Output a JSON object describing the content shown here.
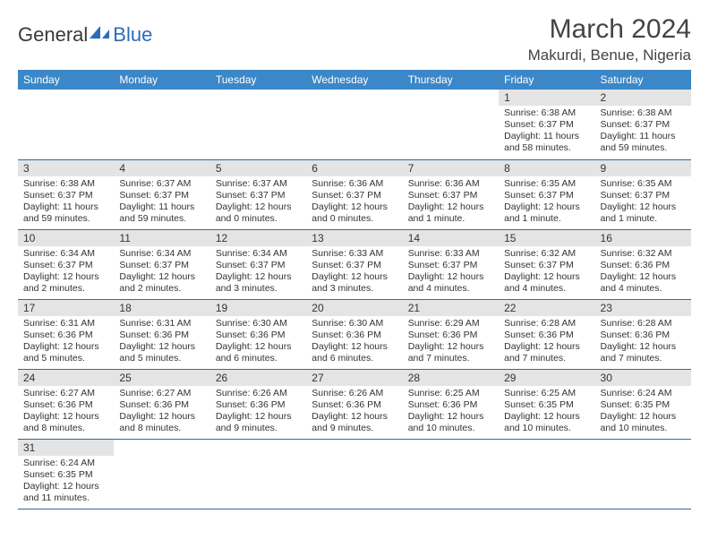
{
  "logo": {
    "part1": "General",
    "part2": "Blue"
  },
  "title": "March 2024",
  "location": "Makurdi, Benue, Nigeria",
  "colors": {
    "header_bg": "#3b87c8",
    "header_text": "#ffffff",
    "daynum_bg": "#e4e4e4",
    "cell_border": "#2f6aa8",
    "logo_accent": "#2a6db8"
  },
  "days_of_week": [
    "Sunday",
    "Monday",
    "Tuesday",
    "Wednesday",
    "Thursday",
    "Friday",
    "Saturday"
  ],
  "weeks": [
    [
      null,
      null,
      null,
      null,
      null,
      {
        "n": "1",
        "sunrise": "Sunrise: 6:38 AM",
        "sunset": "Sunset: 6:37 PM",
        "daylight": "Daylight: 11 hours and 58 minutes."
      },
      {
        "n": "2",
        "sunrise": "Sunrise: 6:38 AM",
        "sunset": "Sunset: 6:37 PM",
        "daylight": "Daylight: 11 hours and 59 minutes."
      }
    ],
    [
      {
        "n": "3",
        "sunrise": "Sunrise: 6:38 AM",
        "sunset": "Sunset: 6:37 PM",
        "daylight": "Daylight: 11 hours and 59 minutes."
      },
      {
        "n": "4",
        "sunrise": "Sunrise: 6:37 AM",
        "sunset": "Sunset: 6:37 PM",
        "daylight": "Daylight: 11 hours and 59 minutes."
      },
      {
        "n": "5",
        "sunrise": "Sunrise: 6:37 AM",
        "sunset": "Sunset: 6:37 PM",
        "daylight": "Daylight: 12 hours and 0 minutes."
      },
      {
        "n": "6",
        "sunrise": "Sunrise: 6:36 AM",
        "sunset": "Sunset: 6:37 PM",
        "daylight": "Daylight: 12 hours and 0 minutes."
      },
      {
        "n": "7",
        "sunrise": "Sunrise: 6:36 AM",
        "sunset": "Sunset: 6:37 PM",
        "daylight": "Daylight: 12 hours and 1 minute."
      },
      {
        "n": "8",
        "sunrise": "Sunrise: 6:35 AM",
        "sunset": "Sunset: 6:37 PM",
        "daylight": "Daylight: 12 hours and 1 minute."
      },
      {
        "n": "9",
        "sunrise": "Sunrise: 6:35 AM",
        "sunset": "Sunset: 6:37 PM",
        "daylight": "Daylight: 12 hours and 1 minute."
      }
    ],
    [
      {
        "n": "10",
        "sunrise": "Sunrise: 6:34 AM",
        "sunset": "Sunset: 6:37 PM",
        "daylight": "Daylight: 12 hours and 2 minutes."
      },
      {
        "n": "11",
        "sunrise": "Sunrise: 6:34 AM",
        "sunset": "Sunset: 6:37 PM",
        "daylight": "Daylight: 12 hours and 2 minutes."
      },
      {
        "n": "12",
        "sunrise": "Sunrise: 6:34 AM",
        "sunset": "Sunset: 6:37 PM",
        "daylight": "Daylight: 12 hours and 3 minutes."
      },
      {
        "n": "13",
        "sunrise": "Sunrise: 6:33 AM",
        "sunset": "Sunset: 6:37 PM",
        "daylight": "Daylight: 12 hours and 3 minutes."
      },
      {
        "n": "14",
        "sunrise": "Sunrise: 6:33 AM",
        "sunset": "Sunset: 6:37 PM",
        "daylight": "Daylight: 12 hours and 4 minutes."
      },
      {
        "n": "15",
        "sunrise": "Sunrise: 6:32 AM",
        "sunset": "Sunset: 6:37 PM",
        "daylight": "Daylight: 12 hours and 4 minutes."
      },
      {
        "n": "16",
        "sunrise": "Sunrise: 6:32 AM",
        "sunset": "Sunset: 6:36 PM",
        "daylight": "Daylight: 12 hours and 4 minutes."
      }
    ],
    [
      {
        "n": "17",
        "sunrise": "Sunrise: 6:31 AM",
        "sunset": "Sunset: 6:36 PM",
        "daylight": "Daylight: 12 hours and 5 minutes."
      },
      {
        "n": "18",
        "sunrise": "Sunrise: 6:31 AM",
        "sunset": "Sunset: 6:36 PM",
        "daylight": "Daylight: 12 hours and 5 minutes."
      },
      {
        "n": "19",
        "sunrise": "Sunrise: 6:30 AM",
        "sunset": "Sunset: 6:36 PM",
        "daylight": "Daylight: 12 hours and 6 minutes."
      },
      {
        "n": "20",
        "sunrise": "Sunrise: 6:30 AM",
        "sunset": "Sunset: 6:36 PM",
        "daylight": "Daylight: 12 hours and 6 minutes."
      },
      {
        "n": "21",
        "sunrise": "Sunrise: 6:29 AM",
        "sunset": "Sunset: 6:36 PM",
        "daylight": "Daylight: 12 hours and 7 minutes."
      },
      {
        "n": "22",
        "sunrise": "Sunrise: 6:28 AM",
        "sunset": "Sunset: 6:36 PM",
        "daylight": "Daylight: 12 hours and 7 minutes."
      },
      {
        "n": "23",
        "sunrise": "Sunrise: 6:28 AM",
        "sunset": "Sunset: 6:36 PM",
        "daylight": "Daylight: 12 hours and 7 minutes."
      }
    ],
    [
      {
        "n": "24",
        "sunrise": "Sunrise: 6:27 AM",
        "sunset": "Sunset: 6:36 PM",
        "daylight": "Daylight: 12 hours and 8 minutes."
      },
      {
        "n": "25",
        "sunrise": "Sunrise: 6:27 AM",
        "sunset": "Sunset: 6:36 PM",
        "daylight": "Daylight: 12 hours and 8 minutes."
      },
      {
        "n": "26",
        "sunrise": "Sunrise: 6:26 AM",
        "sunset": "Sunset: 6:36 PM",
        "daylight": "Daylight: 12 hours and 9 minutes."
      },
      {
        "n": "27",
        "sunrise": "Sunrise: 6:26 AM",
        "sunset": "Sunset: 6:36 PM",
        "daylight": "Daylight: 12 hours and 9 minutes."
      },
      {
        "n": "28",
        "sunrise": "Sunrise: 6:25 AM",
        "sunset": "Sunset: 6:36 PM",
        "daylight": "Daylight: 12 hours and 10 minutes."
      },
      {
        "n": "29",
        "sunrise": "Sunrise: 6:25 AM",
        "sunset": "Sunset: 6:35 PM",
        "daylight": "Daylight: 12 hours and 10 minutes."
      },
      {
        "n": "30",
        "sunrise": "Sunrise: 6:24 AM",
        "sunset": "Sunset: 6:35 PM",
        "daylight": "Daylight: 12 hours and 10 minutes."
      }
    ],
    [
      {
        "n": "31",
        "sunrise": "Sunrise: 6:24 AM",
        "sunset": "Sunset: 6:35 PM",
        "daylight": "Daylight: 12 hours and 11 minutes."
      },
      null,
      null,
      null,
      null,
      null,
      null
    ]
  ]
}
